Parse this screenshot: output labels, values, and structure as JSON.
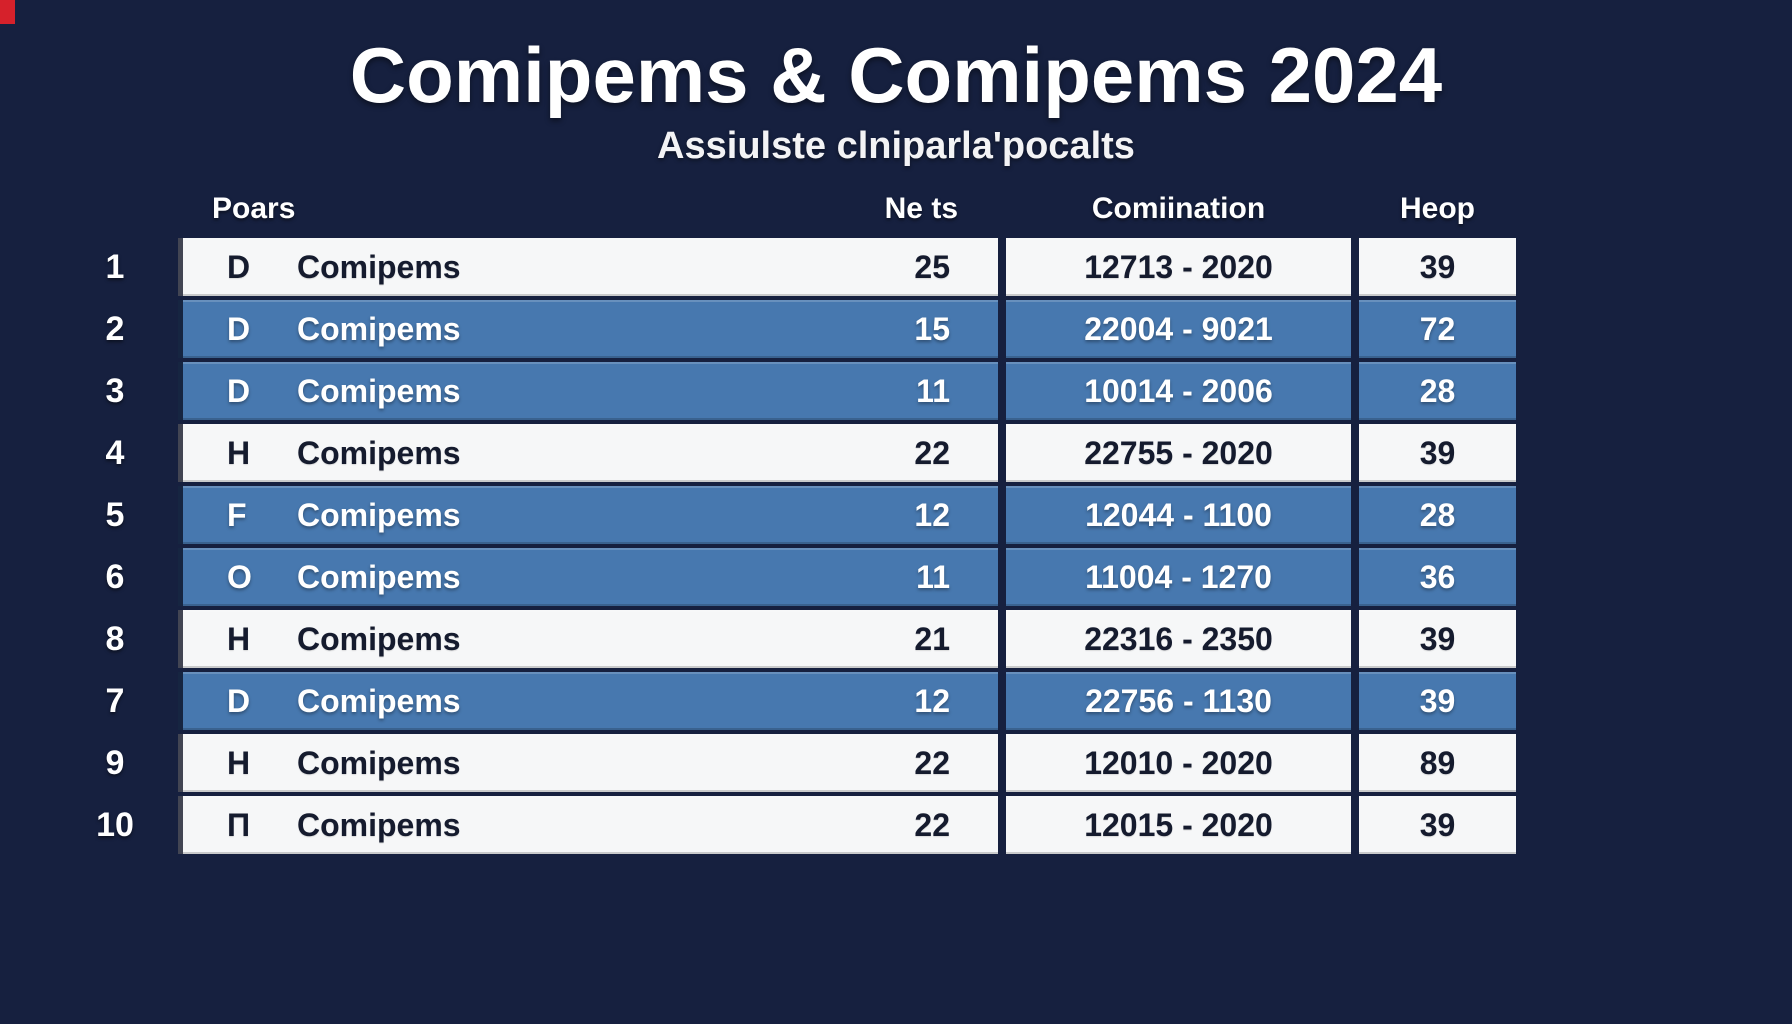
{
  "page": {
    "title": "Comipems & Comipems 2024",
    "subtitle": "Assiulste clniparla'pocalts"
  },
  "colors": {
    "background": "#16203f",
    "row_blue": "#4778af",
    "row_white": "#f6f7f8",
    "accent_red": "#d6212b",
    "text_dark": "#151b2e"
  },
  "table": {
    "headers": {
      "pears": "Poars",
      "nets": "Ne ts",
      "combination": "Comiination",
      "heop": "Heop"
    },
    "rows": [
      {
        "rank": "1",
        "letter": "D",
        "name": "Comipems",
        "nets": "25",
        "combination": "12713 - 2020",
        "heop": "39",
        "variant": "white"
      },
      {
        "rank": "2",
        "letter": "D",
        "name": "Comipems",
        "nets": "15",
        "combination": "22004 - 9021",
        "heop": "72",
        "variant": "blue"
      },
      {
        "rank": "3",
        "letter": "D",
        "name": "Comipems",
        "nets": "11",
        "combination": "10014 - 2006",
        "heop": "28",
        "variant": "blue"
      },
      {
        "rank": "4",
        "letter": "H",
        "name": "Comipems",
        "nets": "22",
        "combination": "22755 - 2020",
        "heop": "39",
        "variant": "white"
      },
      {
        "rank": "5",
        "letter": "F",
        "name": "Comipems",
        "nets": "12",
        "combination": "12044 - 1100",
        "heop": "28",
        "variant": "blue"
      },
      {
        "rank": "6",
        "letter": "O",
        "name": "Comipems",
        "nets": "11",
        "combination": "11004 - 1270",
        "heop": "36",
        "variant": "blue"
      },
      {
        "rank": "8",
        "letter": "H",
        "name": "Comipems",
        "nets": "21",
        "combination": "22316 - 2350",
        "heop": "39",
        "variant": "white"
      },
      {
        "rank": "7",
        "letter": "D",
        "name": "Comipems",
        "nets": "12",
        "combination": "22756 - 1130",
        "heop": "39",
        "variant": "blue"
      },
      {
        "rank": "9",
        "letter": "H",
        "name": "Comipems",
        "nets": "22",
        "combination": "12010 - 2020",
        "heop": "89",
        "variant": "white"
      },
      {
        "rank": "10",
        "letter": "Π",
        "name": "Comipems",
        "nets": "22",
        "combination": "12015 - 2020",
        "heop": "39",
        "variant": "white"
      }
    ]
  }
}
